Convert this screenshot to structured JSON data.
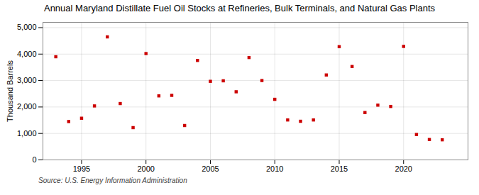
{
  "chart_data": {
    "type": "scatter",
    "title": "Annual Maryland Distillate Fuel Oil Stocks at Refineries, Bulk Terminals, and Natural Gas Plants",
    "ylabel": "Thousand Barrels",
    "source": "Source: U.S. Energy Information Administration",
    "x": [
      1993,
      1994,
      1995,
      1996,
      1997,
      1998,
      1999,
      2000,
      2001,
      2002,
      2003,
      2004,
      2005,
      2006,
      2007,
      2008,
      2009,
      2010,
      2011,
      2012,
      2013,
      2014,
      2015,
      2016,
      2017,
      2018,
      2019,
      2020,
      2021,
      2022,
      2023
    ],
    "values": [
      3900,
      1450,
      1575,
      2040,
      4650,
      2130,
      1220,
      4020,
      2420,
      2440,
      1300,
      3760,
      2970,
      2990,
      2575,
      3870,
      3000,
      2290,
      1510,
      1460,
      1510,
      3210,
      4280,
      3530,
      1790,
      2070,
      2020,
      4290,
      960,
      770,
      760
    ],
    "color": "#cc0000",
    "marker": "square",
    "xlim": [
      1992,
      2025
    ],
    "xticks": [
      1995,
      2000,
      2005,
      2010,
      2015,
      2020
    ],
    "ylim": [
      0,
      5200
    ],
    "yticks": [
      0,
      {
        "value": 1000,
        "label": "1,000"
      },
      {
        "value": 2000,
        "label": "2,000"
      },
      {
        "value": 3000,
        "label": "3,000"
      },
      {
        "value": 4000,
        "label": "4,000"
      },
      {
        "value": 5000,
        "label": "5,000"
      }
    ],
    "grid": true
  }
}
